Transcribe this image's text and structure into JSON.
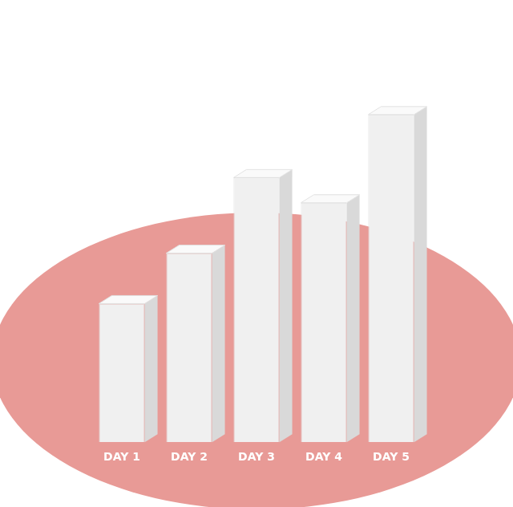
{
  "chart_data": {
    "type": "bar",
    "categories": [
      "DAY 1",
      "DAY 2",
      "DAY 3",
      "DAY 4",
      "DAY 5"
    ],
    "values": [
      11,
      15,
      21,
      19,
      26
    ],
    "color": "#f0f0f0",
    "ylim": [
      0,
      30
    ],
    "yticks": [
      0,
      10,
      20,
      30
    ],
    "grid": false,
    "tick_labels": "x"
  }
}
